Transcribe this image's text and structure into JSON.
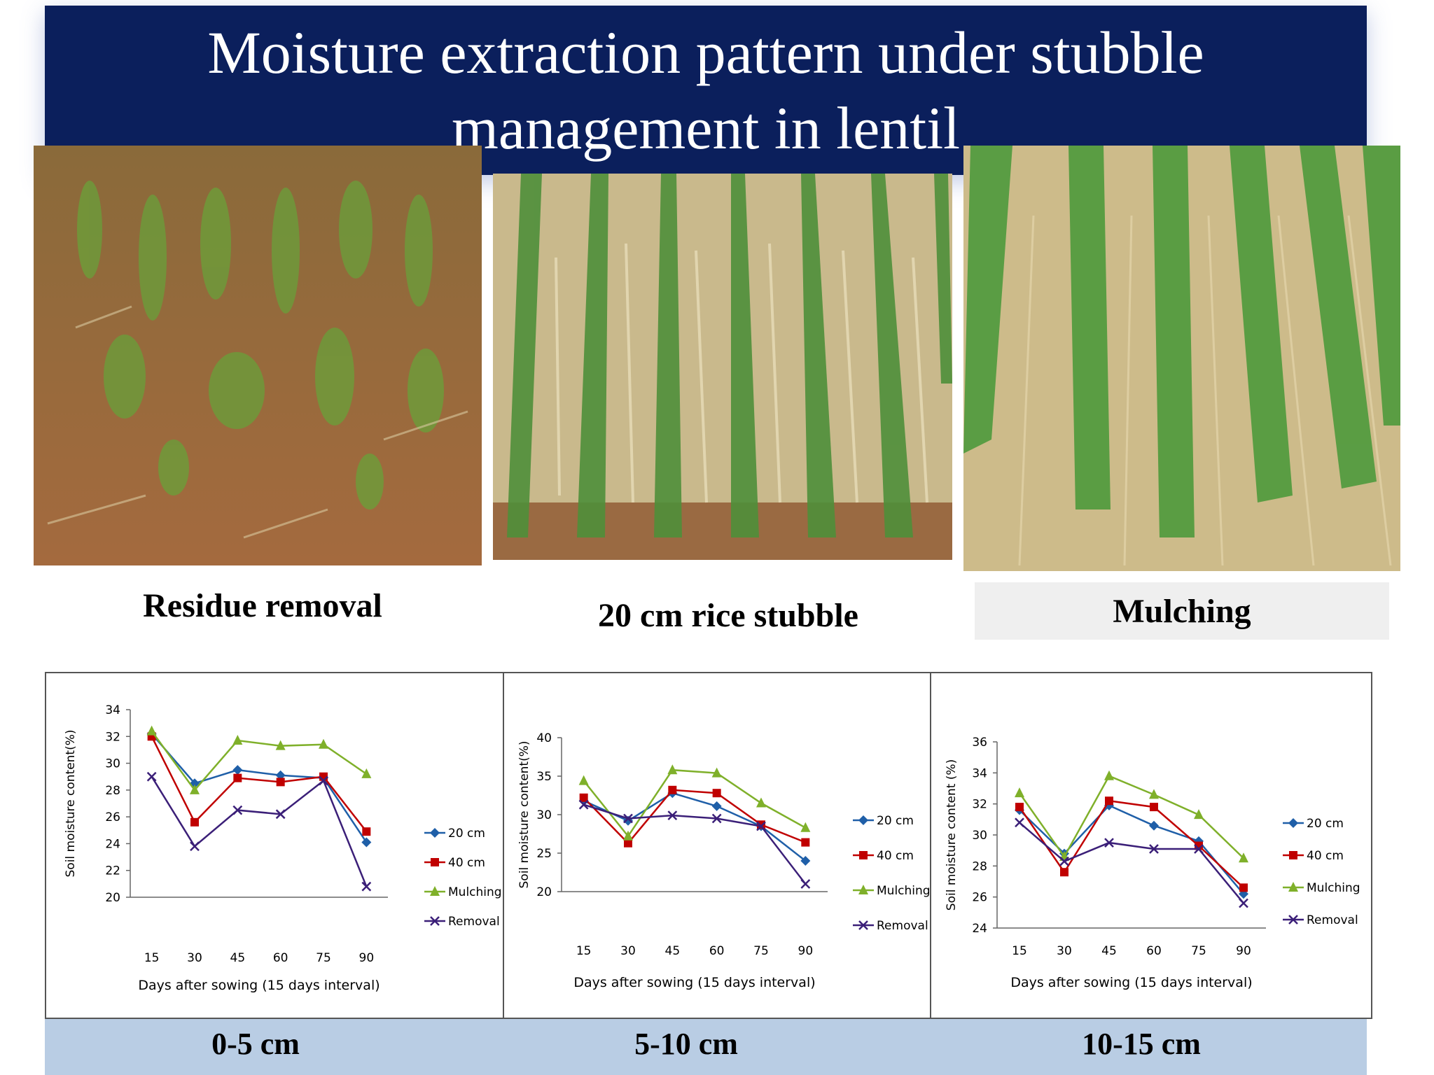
{
  "title": "Moisture extraction pattern under stubble management in lentil",
  "photos": [
    {
      "caption": "Residue removal"
    },
    {
      "caption": "20 cm rice stubble"
    },
    {
      "caption": "Mulching"
    }
  ],
  "colors": {
    "banner": "#0b1f5c",
    "s20": "#1f5fa8",
    "s40": "#c00000",
    "mulch": "#7fb02a",
    "removal": "#3b1f78",
    "bar": "#b9cde4"
  },
  "chart_data": [
    {
      "type": "line",
      "depth_label": "0-5 cm",
      "ylabel": "Soil moisture content(%)",
      "xlabel": "Days after sowing (15 days interval)",
      "x": [
        15,
        30,
        45,
        60,
        75,
        90
      ],
      "ylim": [
        20,
        34
      ],
      "yticks": [
        20,
        22,
        24,
        26,
        28,
        30,
        32,
        34
      ],
      "legend_position": "right",
      "series": [
        {
          "name": "20 cm",
          "values": [
            32.2,
            28.5,
            29.5,
            29.1,
            28.9,
            24.1
          ]
        },
        {
          "name": "40 cm",
          "values": [
            32.0,
            25.6,
            28.9,
            28.6,
            29.0,
            24.9
          ]
        },
        {
          "name": "Mulching",
          "values": [
            32.4,
            28.0,
            31.7,
            31.3,
            31.4,
            29.2
          ]
        },
        {
          "name": "Removal",
          "values": [
            29.0,
            23.8,
            26.5,
            26.2,
            28.7,
            20.8
          ]
        }
      ]
    },
    {
      "type": "line",
      "depth_label": "5-10 cm",
      "ylabel": "Soil moisture content(%)",
      "xlabel": "Days after sowing (15 days interval)",
      "x": [
        15,
        30,
        45,
        60,
        75,
        90
      ],
      "ylim": [
        20,
        40
      ],
      "yticks": [
        20,
        25,
        30,
        35,
        40
      ],
      "legend_position": "right",
      "series": [
        {
          "name": "20 cm",
          "values": [
            31.8,
            29.2,
            32.8,
            31.1,
            28.5,
            24.0
          ]
        },
        {
          "name": "40 cm",
          "values": [
            32.2,
            26.3,
            33.2,
            32.8,
            28.7,
            26.4
          ]
        },
        {
          "name": "Mulching",
          "values": [
            34.4,
            27.2,
            35.8,
            35.4,
            31.5,
            28.3
          ]
        },
        {
          "name": "Removal",
          "values": [
            31.3,
            29.5,
            29.9,
            29.5,
            28.5,
            21.0
          ]
        }
      ]
    },
    {
      "type": "line",
      "depth_label": "10-15 cm",
      "ylabel": "Soil moisture content (%)",
      "xlabel": "Days after sowing (15 days interval)",
      "x": [
        15,
        30,
        45,
        60,
        75,
        90
      ],
      "ylim": [
        24,
        36
      ],
      "yticks": [
        24,
        26,
        28,
        30,
        32,
        34,
        36
      ],
      "legend_position": "right",
      "series": [
        {
          "name": "20 cm",
          "values": [
            31.6,
            28.8,
            31.9,
            30.6,
            29.6,
            26.2
          ]
        },
        {
          "name": "40 cm",
          "values": [
            31.8,
            27.6,
            32.2,
            31.8,
            29.3,
            26.6
          ]
        },
        {
          "name": "Mulching",
          "values": [
            32.7,
            28.6,
            33.8,
            32.6,
            31.3,
            28.5
          ]
        },
        {
          "name": "Removal",
          "values": [
            30.8,
            28.3,
            29.5,
            29.1,
            29.1,
            25.6
          ]
        }
      ]
    }
  ]
}
